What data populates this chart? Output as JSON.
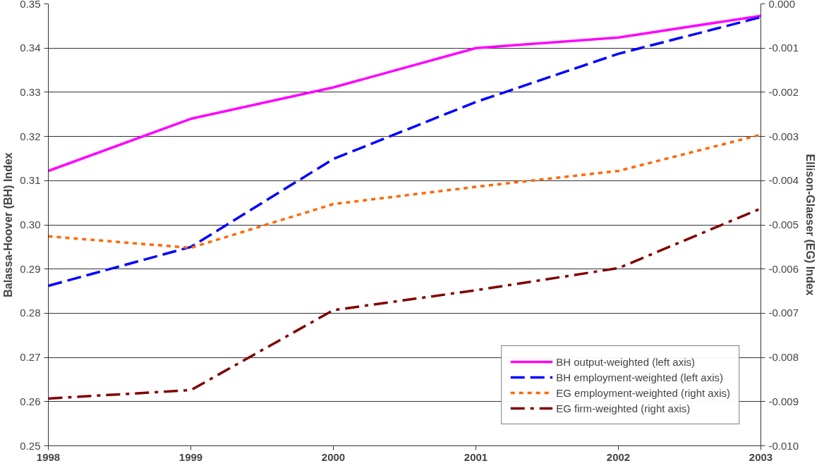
{
  "chart_data": {
    "type": "line",
    "ylabel": "Balassa-Hoover (BH) Index",
    "y2label": "Ellison-Glaeser (EG) Index",
    "x": [
      1998,
      1999,
      2000,
      2001,
      2002,
      2003
    ],
    "xlim": [
      1998,
      2003
    ],
    "xticks": [
      1998,
      1999,
      2000,
      2001,
      2002,
      2003
    ],
    "ylim": [
      0.25,
      0.35
    ],
    "yticks": [
      {
        "value": 0.25,
        "label": "0.25"
      },
      {
        "value": 0.26,
        "label": "0.26"
      },
      {
        "value": 0.27,
        "label": "0.27"
      },
      {
        "value": 0.28,
        "label": "0.28"
      },
      {
        "value": 0.29,
        "label": "0.29"
      },
      {
        "value": 0.3,
        "label": "0.30"
      },
      {
        "value": 0.31,
        "label": "0.31"
      },
      {
        "value": 0.32,
        "label": "0.32"
      },
      {
        "value": 0.33,
        "label": "0.33"
      },
      {
        "value": 0.34,
        "label": "0.34"
      },
      {
        "value": 0.35,
        "label": "0.35"
      }
    ],
    "y2lim": [
      -0.01,
      0.0
    ],
    "y2ticks": [
      {
        "value": -0.01,
        "label": "-0.010"
      },
      {
        "value": -0.009,
        "label": "-0.009"
      },
      {
        "value": -0.008,
        "label": "-0.008"
      },
      {
        "value": -0.007,
        "label": "-0.007"
      },
      {
        "value": -0.006,
        "label": "-0.006"
      },
      {
        "value": -0.005,
        "label": "-0.005"
      },
      {
        "value": -0.004,
        "label": "-0.004"
      },
      {
        "value": -0.003,
        "label": "-0.003"
      },
      {
        "value": -0.002,
        "label": "-0.002"
      },
      {
        "value": -0.001,
        "label": "-0.001"
      },
      {
        "value": 0.0,
        "label": "0.000"
      }
    ],
    "grid": "y",
    "legend": "bottom right",
    "marker": "none",
    "series": [
      {
        "name": "BH output-weighted (left axis)",
        "color": "#ff00ff",
        "line_style": "solid",
        "values": [
          0.3122,
          0.324,
          0.3311,
          0.34,
          0.3424,
          0.3473
        ]
      },
      {
        "name": "BH employment-weighted (left axis)",
        "color": "#0000ff",
        "line_style": "dashed",
        "values": [
          0.2862,
          0.295,
          0.3149,
          0.3278,
          0.3387,
          0.347
        ]
      },
      {
        "name": "EG employment-weighted (right axis)",
        "color": "#ff6600",
        "line_style": "dotted",
        "axis": "y2",
        "values": [
          -0.00526,
          -0.00552,
          -0.00453,
          -0.00414,
          -0.00378,
          -0.00296
        ]
      },
      {
        "name": "EG firm-weighted (right axis)",
        "color": "#800000",
        "line_style": "dashdot",
        "axis": "y2",
        "values": [
          -0.00893,
          -0.00874,
          -0.00693,
          -0.00648,
          -0.00598,
          -0.00463
        ]
      }
    ]
  }
}
